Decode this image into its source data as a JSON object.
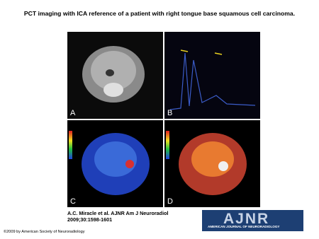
{
  "title": "PCT imaging with ICA reference of a patient with right tongue base squamous cell carcinoma.",
  "figure": {
    "panels": [
      "A",
      "B",
      "C",
      "D"
    ]
  },
  "citation": "A.C. Miracle et al. AJNR Am J Neuroradiol 2009;30:1598-1601",
  "logo": {
    "text": "AJNR",
    "subtitle": "AMERICAN JOURNAL OF NEURORADIOLOGY"
  },
  "copyright": "©2009 by American Society of Neuroradiology"
}
